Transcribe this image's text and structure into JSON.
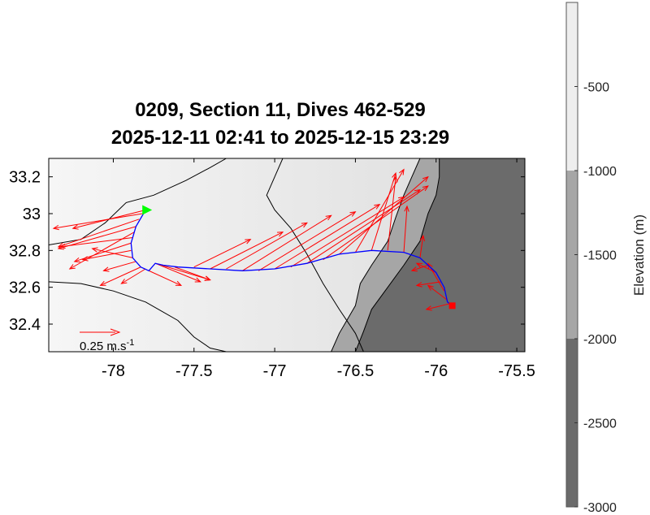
{
  "title_line1": "0209, Section 11, Dives 462-529",
  "title_line2": "2025-12-11 02:41 to 2025-12-15 23:29",
  "colorbar": {
    "label": "Elevation (m)",
    "range": [
      -3000,
      0
    ],
    "ticks": [
      {
        "v": -500,
        "label": "-500"
      },
      {
        "v": -1000,
        "label": "-1000"
      },
      {
        "v": -1500,
        "label": "-1500"
      },
      {
        "v": -2000,
        "label": "-2000"
      },
      {
        "v": -2500,
        "label": "-2500"
      },
      {
        "v": -3000,
        "label": "-3000"
      }
    ],
    "bands": [
      {
        "from": 0,
        "to": -1000,
        "color": "#eeeeee"
      },
      {
        "from": -1000,
        "to": -2000,
        "color": "#a6a6a6"
      },
      {
        "from": -2000,
        "to": -3000,
        "color": "#6b6b6b"
      }
    ]
  },
  "scale_arrow": {
    "label": "0.25 m.s",
    "superscript": "-1"
  },
  "colors": {
    "track": "#0000ff",
    "vectors": "#ff0000",
    "start": "#00ff00",
    "end": "#ff0000",
    "contour": "#000000"
  },
  "chart_data": {
    "type": "map",
    "xlim": [
      -78.4,
      -75.45
    ],
    "ylim": [
      32.25,
      33.3
    ],
    "xticks": [
      {
        "v": -78,
        "label": "-78"
      },
      {
        "v": -77.5,
        "label": "-77.5"
      },
      {
        "v": -77,
        "label": "-77"
      },
      {
        "v": -76.5,
        "label": "-76.5"
      },
      {
        "v": -76,
        "label": "-76"
      },
      {
        "v": -75.5,
        "label": "-75.5"
      }
    ],
    "yticks": [
      {
        "v": 32.4,
        "label": "32.4"
      },
      {
        "v": 32.6,
        "label": "32.6"
      },
      {
        "v": 32.8,
        "label": "32.8"
      },
      {
        "v": 33,
        "label": "33"
      },
      {
        "v": 33.2,
        "label": "33.2"
      }
    ],
    "start": {
      "lon": -77.8,
      "lat": 33.02,
      "marker": "triangle",
      "color": "#00ff00"
    },
    "end": {
      "lon": -75.9,
      "lat": 32.5,
      "marker": "square",
      "color": "#ff0000"
    },
    "track": [
      [
        -77.8,
        33.02
      ],
      [
        -77.86,
        32.93
      ],
      [
        -77.89,
        32.84
      ],
      [
        -77.88,
        32.76
      ],
      [
        -77.83,
        32.71
      ],
      [
        -77.78,
        32.69
      ],
      [
        -77.74,
        32.73
      ],
      [
        -77.69,
        32.72
      ],
      [
        -77.6,
        32.71
      ],
      [
        -77.4,
        32.7
      ],
      [
        -77.2,
        32.69
      ],
      [
        -77.0,
        32.7
      ],
      [
        -76.8,
        32.73
      ],
      [
        -76.6,
        32.78
      ],
      [
        -76.4,
        32.8
      ],
      [
        -76.2,
        32.79
      ],
      [
        -76.1,
        32.76
      ],
      [
        -76.0,
        32.68
      ],
      [
        -75.95,
        32.6
      ],
      [
        -75.93,
        32.52
      ],
      [
        -75.9,
        32.5
      ]
    ],
    "contours": [
      [
        [
          -78.4,
          32.83
        ],
        [
          -78.2,
          32.86
        ],
        [
          -78.05,
          32.95
        ],
        [
          -77.92,
          33.06
        ],
        [
          -77.75,
          33.1
        ],
        [
          -77.55,
          33.18
        ],
        [
          -77.4,
          33.25
        ],
        [
          -77.3,
          33.3
        ]
      ],
      [
        [
          -78.4,
          32.63
        ],
        [
          -78.2,
          32.62
        ],
        [
          -78.0,
          32.58
        ],
        [
          -77.8,
          32.52
        ],
        [
          -77.6,
          32.42
        ],
        [
          -77.5,
          32.33
        ],
        [
          -77.4,
          32.27
        ],
        [
          -77.3,
          32.25
        ]
      ],
      [
        [
          -76.95,
          33.3
        ],
        [
          -77.0,
          33.2
        ],
        [
          -77.05,
          33.1
        ],
        [
          -77.0,
          33.02
        ],
        [
          -76.9,
          32.92
        ],
        [
          -76.8,
          32.78
        ],
        [
          -76.7,
          32.62
        ],
        [
          -76.6,
          32.48
        ],
        [
          -76.5,
          32.35
        ],
        [
          -76.45,
          32.25
        ]
      ],
      [
        [
          -76.1,
          33.3
        ],
        [
          -76.15,
          33.2
        ],
        [
          -76.2,
          33.1
        ],
        [
          -76.25,
          32.98
        ],
        [
          -76.3,
          32.85
        ],
        [
          -76.4,
          32.72
        ],
        [
          -76.47,
          32.62
        ],
        [
          -76.5,
          32.5
        ],
        [
          -76.6,
          32.35
        ],
        [
          -76.65,
          32.25
        ]
      ],
      [
        [
          -75.98,
          33.3
        ],
        [
          -75.98,
          33.2
        ],
        [
          -76.0,
          33.1
        ],
        [
          -76.05,
          33.0
        ],
        [
          -76.1,
          32.85
        ],
        [
          -76.2,
          32.72
        ],
        [
          -76.3,
          32.6
        ],
        [
          -76.4,
          32.48
        ],
        [
          -76.45,
          32.36
        ],
        [
          -76.5,
          32.25
        ]
      ]
    ],
    "vectors": [
      {
        "lon": -77.8,
        "lat": 33.02,
        "dlon": -0.45,
        "dlat": -0.1
      },
      {
        "lon": -77.82,
        "lat": 33.0,
        "dlon": -0.55,
        "dlat": -0.08
      },
      {
        "lon": -77.84,
        "lat": 32.97,
        "dlon": -0.5,
        "dlat": -0.15
      },
      {
        "lon": -77.86,
        "lat": 32.93,
        "dlon": -0.48,
        "dlat": -0.12
      },
      {
        "lon": -77.87,
        "lat": 32.9,
        "dlon": -0.4,
        "dlat": -0.2
      },
      {
        "lon": -77.88,
        "lat": 32.87,
        "dlon": -0.45,
        "dlat": -0.05
      },
      {
        "lon": -77.89,
        "lat": 32.84,
        "dlon": -0.35,
        "dlat": -0.1
      },
      {
        "lon": -77.89,
        "lat": 32.8,
        "dlon": -0.3,
        "dlat": -0.05
      },
      {
        "lon": -77.88,
        "lat": 32.76,
        "dlon": -0.25,
        "dlat": 0.05
      },
      {
        "lon": -77.86,
        "lat": 32.74,
        "dlon": -0.2,
        "dlat": -0.05
      },
      {
        "lon": -77.83,
        "lat": 32.71,
        "dlon": -0.25,
        "dlat": -0.1
      },
      {
        "lon": -77.8,
        "lat": 32.7,
        "dlon": -0.15,
        "dlat": -0.08
      },
      {
        "lon": -77.78,
        "lat": 32.69,
        "dlon": 0.2,
        "dlat": -0.08
      },
      {
        "lon": -77.74,
        "lat": 32.73,
        "dlon": 0.28,
        "dlat": -0.1
      },
      {
        "lon": -77.7,
        "lat": 32.72,
        "dlon": 0.3,
        "dlat": -0.08
      },
      {
        "lon": -77.62,
        "lat": 32.71,
        "dlon": 0.22,
        "dlat": -0.07
      },
      {
        "lon": -77.5,
        "lat": 32.71,
        "dlon": 0.35,
        "dlat": 0.15
      },
      {
        "lon": -77.4,
        "lat": 32.7,
        "dlon": 0.45,
        "dlat": 0.2
      },
      {
        "lon": -77.3,
        "lat": 32.7,
        "dlon": 0.5,
        "dlat": 0.25
      },
      {
        "lon": -77.2,
        "lat": 32.69,
        "dlon": 0.55,
        "dlat": 0.3
      },
      {
        "lon": -77.1,
        "lat": 32.69,
        "dlon": 0.6,
        "dlat": 0.32
      },
      {
        "lon": -77.0,
        "lat": 32.7,
        "dlon": 0.65,
        "dlat": 0.35
      },
      {
        "lon": -76.9,
        "lat": 32.71,
        "dlon": 0.7,
        "dlat": 0.38
      },
      {
        "lon": -76.8,
        "lat": 32.73,
        "dlon": 0.7,
        "dlat": 0.4
      },
      {
        "lon": -76.7,
        "lat": 32.75,
        "dlon": 0.65,
        "dlat": 0.4
      },
      {
        "lon": -76.6,
        "lat": 32.78,
        "dlon": 0.55,
        "dlat": 0.42
      },
      {
        "lon": -76.5,
        "lat": 32.79,
        "dlon": 0.3,
        "dlat": 0.45
      },
      {
        "lon": -76.4,
        "lat": 32.8,
        "dlon": 0.15,
        "dlat": 0.42
      },
      {
        "lon": -76.3,
        "lat": 32.8,
        "dlon": 0.05,
        "dlat": 0.4
      },
      {
        "lon": -76.2,
        "lat": 32.79,
        "dlon": 0.02,
        "dlat": 0.25
      },
      {
        "lon": -76.1,
        "lat": 32.76,
        "dlon": 0.02,
        "dlat": 0.12
      },
      {
        "lon": -76.05,
        "lat": 32.72,
        "dlon": -0.1,
        "dlat": -0.03
      },
      {
        "lon": -76.0,
        "lat": 32.68,
        "dlon": -0.12,
        "dlat": 0.05
      },
      {
        "lon": -75.97,
        "lat": 32.63,
        "dlon": -0.15,
        "dlat": -0.02
      },
      {
        "lon": -75.95,
        "lat": 32.58,
        "dlon": -0.1,
        "dlat": 0.15
      },
      {
        "lon": -75.93,
        "lat": 32.53,
        "dlon": -0.12,
        "dlat": 0.08
      },
      {
        "lon": -75.92,
        "lat": 32.51,
        "dlon": -0.14,
        "dlat": -0.03
      }
    ]
  }
}
